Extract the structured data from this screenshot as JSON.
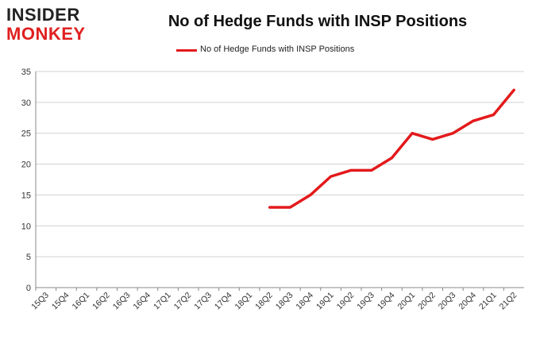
{
  "logo": {
    "line1": "INSIDER",
    "line2": "MONKEY"
  },
  "colors": {
    "line": "#e31a1c",
    "grid": "#d0d0d0",
    "axis": "#888888",
    "text": "#333333",
    "logo_red": "#e02020"
  },
  "chart_data": {
    "type": "line",
    "title": "No of Hedge Funds with INSP Positions",
    "xlabel": "",
    "ylabel": "",
    "categories": [
      "15Q3",
      "15Q4",
      "16Q1",
      "16Q2",
      "16Q3",
      "16Q4",
      "17Q1",
      "17Q2",
      "17Q3",
      "17Q4",
      "18Q1",
      "18Q2",
      "18Q3",
      "18Q4",
      "19Q1",
      "19Q2",
      "19Q3",
      "19Q4",
      "20Q1",
      "20Q2",
      "20Q3",
      "20Q4",
      "21Q1",
      "21Q2"
    ],
    "series": [
      {
        "name": "No of Hedge Funds with INSP Positions",
        "values": [
          null,
          null,
          null,
          null,
          null,
          null,
          null,
          null,
          null,
          null,
          null,
          13,
          13,
          15,
          18,
          19,
          19,
          21,
          25,
          24,
          25,
          27,
          28,
          32
        ]
      }
    ],
    "ylim": [
      0,
      35
    ],
    "yticks": [
      0,
      5,
      10,
      15,
      20,
      25,
      30,
      35
    ],
    "grid": true,
    "legend": "top-center"
  }
}
